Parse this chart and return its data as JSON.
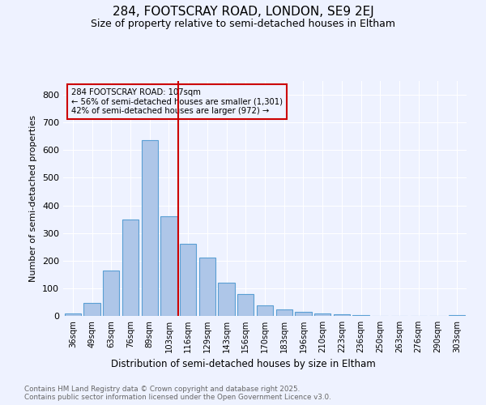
{
  "title1": "284, FOOTSCRAY ROAD, LONDON, SE9 2EJ",
  "title2": "Size of property relative to semi-detached houses in Eltham",
  "xlabel": "Distribution of semi-detached houses by size in Eltham",
  "ylabel": "Number of semi-detached properties",
  "categories": [
    "36sqm",
    "49sqm",
    "63sqm",
    "76sqm",
    "89sqm",
    "103sqm",
    "116sqm",
    "129sqm",
    "143sqm",
    "156sqm",
    "170sqm",
    "183sqm",
    "196sqm",
    "210sqm",
    "223sqm",
    "236sqm",
    "250sqm",
    "263sqm",
    "276sqm",
    "290sqm",
    "303sqm"
  ],
  "values": [
    10,
    48,
    165,
    350,
    635,
    360,
    260,
    210,
    120,
    80,
    38,
    22,
    15,
    10,
    5,
    2,
    0,
    0,
    0,
    0,
    3
  ],
  "bar_color": "#aec6e8",
  "bar_edge_color": "#5a9fd4",
  "vline_color": "#cc0000",
  "annotation_line1": "284 FOOTSCRAY ROAD: 107sqm",
  "annotation_line2": "← 56% of semi-detached houses are smaller (1,301)",
  "annotation_line3": "42% of semi-detached houses are larger (972) →",
  "annotation_box_color": "#cc0000",
  "footer1": "Contains HM Land Registry data © Crown copyright and database right 2025.",
  "footer2": "Contains public sector information licensed under the Open Government Licence v3.0.",
  "bg_color": "#eef2ff",
  "ylim": [
    0,
    850
  ],
  "yticks": [
    0,
    100,
    200,
    300,
    400,
    500,
    600,
    700,
    800
  ]
}
